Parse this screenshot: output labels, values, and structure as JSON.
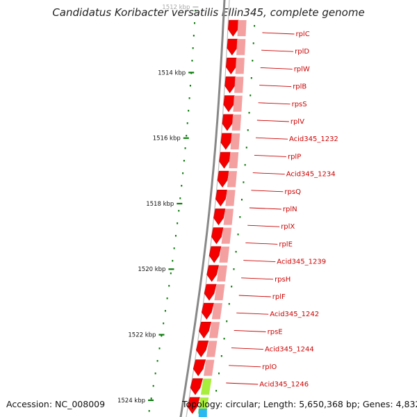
{
  "title": "Candidatus Koribacter versatilis Ellin345, complete genome",
  "footer": {
    "accession": "Accession: NC_008009",
    "summary": "Topology: circular; Length: 5,650,368 bp; Genes: 4,832"
  },
  "colors": {
    "gene_forward": "#f50000",
    "gene_forward_band": "#f4a0a0",
    "gene_alt": "#a8ec3c",
    "gene_blue": "#2ab8f0",
    "tick": "#0a7a0a",
    "label": "#cc0000",
    "backbone": "#888888"
  },
  "ticks": [
    {
      "label": "1512 kbp",
      "faded": true
    },
    {
      "label": "1514 kbp"
    },
    {
      "label": "1516 kbp"
    },
    {
      "label": "1518 kbp"
    },
    {
      "label": "1520 kbp"
    },
    {
      "label": "1522 kbp"
    },
    {
      "label": "1524 kbp"
    }
  ],
  "genes": [
    {
      "label": "rplC"
    },
    {
      "label": "rplD"
    },
    {
      "label": "rplW"
    },
    {
      "label": "rplB"
    },
    {
      "label": "rpsS"
    },
    {
      "label": "rplV"
    },
    {
      "label": "Acid345_1232"
    },
    {
      "label": "rplP"
    },
    {
      "label": "Acid345_1234"
    },
    {
      "label": "rpsQ"
    },
    {
      "label": "rplN"
    },
    {
      "label": "rplX"
    },
    {
      "label": "rplE"
    },
    {
      "label": "Acid345_1239"
    },
    {
      "label": "rpsH"
    },
    {
      "label": "rplF"
    },
    {
      "label": "Acid345_1242"
    },
    {
      "label": "rpsE"
    },
    {
      "label": "Acid345_1244"
    },
    {
      "label": "rplO"
    },
    {
      "label": "Acid345_1246"
    }
  ]
}
